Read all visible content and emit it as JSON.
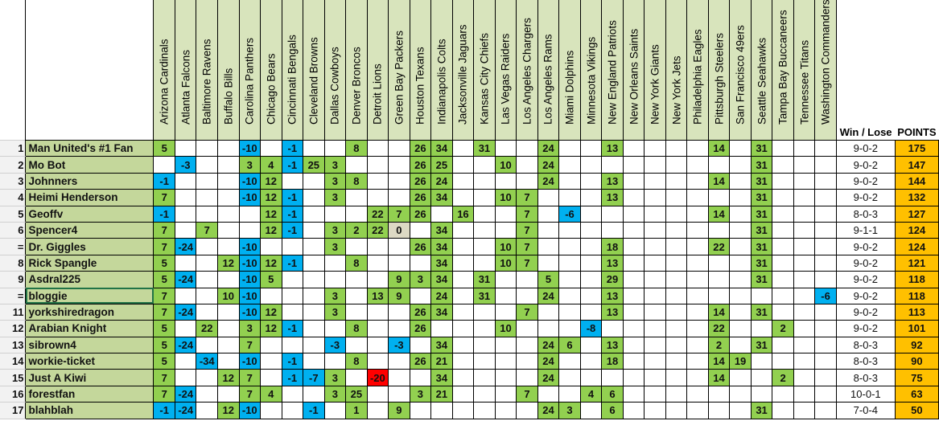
{
  "header": {
    "win_lose": "Win / Lose",
    "points": "POINTS"
  },
  "colors": {
    "positive": "#92d050",
    "negative": "#00b0f0",
    "zero": "#ddd9c4",
    "red": "#ff0000",
    "points": "#ffc000",
    "name_bg": "#c4d79b",
    "header_bg": "#d8e4bc"
  },
  "teams": [
    "Arizona Cardinals",
    "Atlanta Falcons",
    "Baltimore Ravens",
    "Buffalo Bills",
    "Carolina Panthers",
    "Chicago Bears",
    "Cincinnati Bengals",
    "Cleveland Browns",
    "Dallas Cowboys",
    "Denver Broncos",
    "Detroit Lions",
    "Green Bay Packers",
    "Houston Texans",
    "Indianapolis Colts",
    "Jacksonville Jaguars",
    "Kansas City Chiefs",
    "Las Vegas Raiders",
    "Los Angeles Chargers",
    "Los Angeles Rams",
    "Miami Dolphins",
    "Minnesota Vikings",
    "New England Patriots",
    "New Orleans Saints",
    "New York Giants",
    "New York Jets",
    "Philadelphia Eagles",
    "Pittsburgh Steelers",
    "San Francisco 49ers",
    "Seattle Seahawks",
    "Tampa Bay Buccaneers",
    "Tennessee Titans",
    "Washington Commanders"
  ],
  "players": [
    {
      "rank": "1",
      "name": "Man United's #1 Fan",
      "record": "9-0-2",
      "points": "175",
      "picks": {
        "Arizona Cardinals": 5,
        "Carolina Panthers": -10,
        "Cincinnati Bengals": -1,
        "Denver Broncos": 8,
        "Houston Texans": 26,
        "Indianapolis Colts": 34,
        "Kansas City Chiefs": 31,
        "Los Angeles Rams": 24,
        "New England Patriots": 13,
        "Pittsburgh Steelers": 14,
        "Seattle Seahawks": 31
      }
    },
    {
      "rank": "2",
      "name": "Mo Bot",
      "record": "9-0-2",
      "points": "147",
      "picks": {
        "Atlanta Falcons": -3,
        "Carolina Panthers": 3,
        "Chicago Bears": 4,
        "Cincinnati Bengals": -1,
        "Cleveland Browns": 25,
        "Dallas Cowboys": 3,
        "Houston Texans": 26,
        "Indianapolis Colts": 25,
        "Las Vegas Raiders": 10,
        "Los Angeles Rams": 24,
        "Seattle Seahawks": 31
      }
    },
    {
      "rank": "3",
      "name": "Johnners",
      "record": "9-0-2",
      "points": "144",
      "picks": {
        "Arizona Cardinals": -1,
        "Carolina Panthers": -10,
        "Chicago Bears": 12,
        "Dallas Cowboys": 3,
        "Denver Broncos": 8,
        "Houston Texans": 26,
        "Indianapolis Colts": 24,
        "Los Angeles Rams": 24,
        "New England Patriots": 13,
        "Pittsburgh Steelers": 14,
        "Seattle Seahawks": 31
      }
    },
    {
      "rank": "4",
      "name": "Heimi Henderson",
      "record": "9-0-2",
      "points": "132",
      "picks": {
        "Arizona Cardinals": 7,
        "Carolina Panthers": -10,
        "Chicago Bears": 12,
        "Cincinnati Bengals": -1,
        "Dallas Cowboys": 3,
        "Houston Texans": 26,
        "Indianapolis Colts": 34,
        "Las Vegas Raiders": 10,
        "Los Angeles Chargers": 7,
        "New England Patriots": 13,
        "Seattle Seahawks": 31
      }
    },
    {
      "rank": "5",
      "name": "Geoffv",
      "record": "8-0-3",
      "points": "127",
      "picks": {
        "Arizona Cardinals": -1,
        "Chicago Bears": 12,
        "Cincinnati Bengals": -1,
        "Detroit Lions": 22,
        "Green Bay Packers": 7,
        "Houston Texans": 26,
        "Jacksonville Jaguars": 16,
        "Los Angeles Chargers": 7,
        "Miami Dolphins": -6,
        "Pittsburgh Steelers": 14,
        "Seattle Seahawks": 31
      }
    },
    {
      "rank": "6",
      "name": "Spencer4",
      "record": "9-1-1",
      "points": "124",
      "picks": {
        "Arizona Cardinals": 7,
        "Baltimore Ravens": 7,
        "Chicago Bears": 12,
        "Cincinnati Bengals": -1,
        "Dallas Cowboys": 3,
        "Denver Broncos": 2,
        "Detroit Lions": 22,
        "Green Bay Packers": 0,
        "Indianapolis Colts": 34,
        "Los Angeles Chargers": 7,
        "Seattle Seahawks": 31
      }
    },
    {
      "rank": "=",
      "name": "Dr. Giggles",
      "record": "9-0-2",
      "points": "124",
      "picks": {
        "Arizona Cardinals": 7,
        "Atlanta Falcons": -24,
        "Carolina Panthers": -10,
        "Dallas Cowboys": 3,
        "Houston Texans": 26,
        "Indianapolis Colts": 34,
        "Las Vegas Raiders": 10,
        "Los Angeles Chargers": 7,
        "New England Patriots": 18,
        "Pittsburgh Steelers": 22,
        "Seattle Seahawks": 31
      }
    },
    {
      "rank": "8",
      "name": "Rick Spangle",
      "record": "9-0-2",
      "points": "121",
      "picks": {
        "Arizona Cardinals": 5,
        "Buffalo Bills": 12,
        "Carolina Panthers": -10,
        "Chicago Bears": 12,
        "Cincinnati Bengals": -1,
        "Denver Broncos": 8,
        "Indianapolis Colts": 34,
        "Las Vegas Raiders": 10,
        "Los Angeles Chargers": 7,
        "New England Patriots": 13,
        "Seattle Seahawks": 31
      }
    },
    {
      "rank": "9",
      "name": "Asdral225",
      "record": "9-0-2",
      "points": "118",
      "picks": {
        "Arizona Cardinals": 5,
        "Atlanta Falcons": -24,
        "Carolina Panthers": -10,
        "Chicago Bears": 5,
        "Green Bay Packers": 9,
        "Houston Texans": 3,
        "Indianapolis Colts": 34,
        "Kansas City Chiefs": 31,
        "Los Angeles Rams": 5,
        "New England Patriots": 29,
        "Seattle Seahawks": 31
      }
    },
    {
      "rank": "=",
      "name": "bloggie",
      "record": "9-0-2",
      "points": "118",
      "selected": true,
      "picks": {
        "Arizona Cardinals": 7,
        "Buffalo Bills": 10,
        "Carolina Panthers": -10,
        "Dallas Cowboys": 3,
        "Detroit Lions": 13,
        "Green Bay Packers": 9,
        "Indianapolis Colts": 24,
        "Kansas City Chiefs": 31,
        "Los Angeles Rams": 24,
        "New England Patriots": 13,
        "Washington Commanders": -6
      }
    },
    {
      "rank": "11",
      "name": "yorkshiredragon",
      "record": "9-0-2",
      "points": "113",
      "picks": {
        "Arizona Cardinals": 7,
        "Atlanta Falcons": -24,
        "Carolina Panthers": -10,
        "Chicago Bears": 12,
        "Dallas Cowboys": 3,
        "Houston Texans": 26,
        "Indianapolis Colts": 34,
        "Los Angeles Chargers": 7,
        "New England Patriots": 13,
        "Pittsburgh Steelers": 14,
        "Seattle Seahawks": 31
      }
    },
    {
      "rank": "12",
      "name": "Arabian Knight",
      "record": "9-0-2",
      "points": "101",
      "picks": {
        "Arizona Cardinals": 5,
        "Baltimore Ravens": 22,
        "Carolina Panthers": 3,
        "Chicago Bears": 12,
        "Cincinnati Bengals": -1,
        "Denver Broncos": 8,
        "Houston Texans": 26,
        "Las Vegas Raiders": 10,
        "Minnesota Vikings": -8,
        "Pittsburgh Steelers": 22,
        "Tampa Bay Buccaneers": 2
      }
    },
    {
      "rank": "13",
      "name": "sibrown4",
      "record": "8-0-3",
      "points": "92",
      "picks": {
        "Arizona Cardinals": 5,
        "Atlanta Falcons": -24,
        "Carolina Panthers": 7,
        "Dallas Cowboys": -3,
        "Green Bay Packers": -3,
        "Indianapolis Colts": 34,
        "Los Angeles Rams": 24,
        "Miami Dolphins": 6,
        "New England Patriots": 13,
        "Pittsburgh Steelers": 2,
        "Seattle Seahawks": 31
      }
    },
    {
      "rank": "14",
      "name": "workie-ticket",
      "record": "8-0-3",
      "points": "90",
      "picks": {
        "Arizona Cardinals": 5,
        "Baltimore Ravens": -34,
        "Carolina Panthers": -10,
        "Cincinnati Bengals": -1,
        "Denver Broncos": 8,
        "Houston Texans": 26,
        "Indianapolis Colts": 21,
        "Los Angeles Rams": 24,
        "New England Patriots": 18,
        "Pittsburgh Steelers": 14,
        "San Francisco 49ers": 19
      }
    },
    {
      "rank": "15",
      "name": "Just A Kiwi",
      "record": "8-0-3",
      "points": "75",
      "red": [
        "Detroit Lions"
      ],
      "picks": {
        "Arizona Cardinals": 7,
        "Buffalo Bills": 12,
        "Carolina Panthers": 7,
        "Cincinnati Bengals": -1,
        "Cleveland Browns": -7,
        "Dallas Cowboys": 3,
        "Detroit Lions": -20,
        "Indianapolis Colts": 34,
        "Los Angeles Rams": 24,
        "Pittsburgh Steelers": 14,
        "Tampa Bay Buccaneers": 2
      }
    },
    {
      "rank": "16",
      "name": "forestfan",
      "record": "10-0-1",
      "points": "63",
      "picks": {
        "Arizona Cardinals": 7,
        "Atlanta Falcons": -24,
        "Carolina Panthers": 7,
        "Chicago Bears": 4,
        "Dallas Cowboys": 3,
        "Denver Broncos": 25,
        "Houston Texans": 3,
        "Indianapolis Colts": 21,
        "Los Angeles Chargers": 7,
        "Minnesota Vikings": 4,
        "New England Patriots": 6
      }
    },
    {
      "rank": "17",
      "name": "blahblah",
      "record": "7-0-4",
      "points": "50",
      "picks": {
        "Arizona Cardinals": -1,
        "Atlanta Falcons": -24,
        "Buffalo Bills": 12,
        "Carolina Panthers": -10,
        "Cleveland Browns": -1,
        "Denver Broncos": 1,
        "Green Bay Packers": 9,
        "Los Angeles Rams": 24,
        "Miami Dolphins": 3,
        "New England Patriots": 6,
        "Seattle Seahawks": 31
      }
    }
  ]
}
